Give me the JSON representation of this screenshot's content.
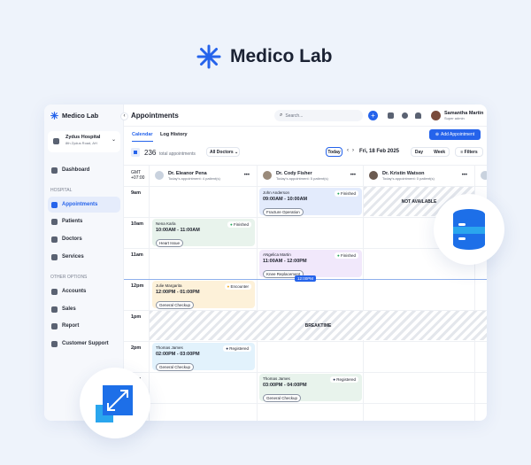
{
  "brand": {
    "name": "Medico Lab"
  },
  "sidebar": {
    "brand": "Medico Lab",
    "hospital": {
      "name": "Zydus Hospital",
      "address": "8th Zydus Road, AH"
    },
    "dashboard": "Dashboard",
    "section_hospital": "HOSPITAL",
    "hospital_items": [
      {
        "label": "Appointments",
        "active": true
      },
      {
        "label": "Patients"
      },
      {
        "label": "Doctors"
      },
      {
        "label": "Services"
      }
    ],
    "section_other": "OTHER OPTIONS",
    "other_items": [
      {
        "label": "Accounts"
      },
      {
        "label": "Sales"
      },
      {
        "label": "Report"
      },
      {
        "label": "Customer Support"
      }
    ]
  },
  "header": {
    "title": "Appointments",
    "search_placeholder": "Search...",
    "user": {
      "name": "Samantha Martin",
      "role": "Super admin"
    }
  },
  "tabs": [
    {
      "label": "Calendar",
      "active": true
    },
    {
      "label": "Log History"
    }
  ],
  "toolbar": {
    "add": "Add Appointment",
    "count": "236",
    "count_label": "total appointments",
    "filter_doctors": "All Doctors",
    "today": "Today",
    "date": "Fri, 18 Feb 2025",
    "day": "Day",
    "week": "Week",
    "filters": "Filters"
  },
  "timezone": {
    "label": "GMT",
    "offset": "+07:00"
  },
  "doctors": [
    {
      "name": "Dr. Eleanor Pena",
      "sub": "Today's appointment: 4 patient(s)"
    },
    {
      "name": "Dr. Cody Fisher",
      "sub": "Today's appointment: 5 patient(s)"
    },
    {
      "name": "Dr. Kristin Watson",
      "sub": "Today's appointment: 0 patient(s)"
    }
  ],
  "times": [
    "9am",
    "10am",
    "11am",
    "12pm",
    "1pm",
    "2pm",
    "3pm"
  ],
  "now_label": "12:00PM",
  "not_available": "NOT AVAILABLE",
  "breaktime": "BREAKTIME",
  "appointments": [
    {
      "patient": "John Anderson",
      "time": "09:00AM - 10:00AM",
      "tag": "Fracture Operation",
      "status": "Finished",
      "color": "#e3ebfc"
    },
    {
      "patient": "Nena Karla",
      "time": "10:00AM - 11:00AM",
      "tag": "Heart Issue",
      "status": "Finished",
      "color": "#e8f3ec"
    },
    {
      "patient": "ANgelica Martin",
      "time": "11:00AM - 12:00PM",
      "tag": "Knee Replacement",
      "status": "Finished",
      "color": "#f1e8fb"
    },
    {
      "patient": "Julie Margarita",
      "time": "12:00PM - 01:00PM",
      "tag": "General Checkup",
      "status": "Encounter",
      "color": "#fdf1d9"
    },
    {
      "patient": "Thomas James",
      "time": "02:00PM - 03:00PM",
      "tag": "General Checkup",
      "status": "Registered",
      "color": "#e2f2fc"
    },
    {
      "patient": "Thomas James",
      "time": "03:00PM - 04:00PM",
      "tag": "General Checkup",
      "status": "Registered",
      "color": "#e8f3ec"
    }
  ],
  "colors": {
    "accent": "#2563eb",
    "finished": "#22a55a",
    "encounter": "#f0a81c",
    "registered": "#1e2a4a"
  }
}
